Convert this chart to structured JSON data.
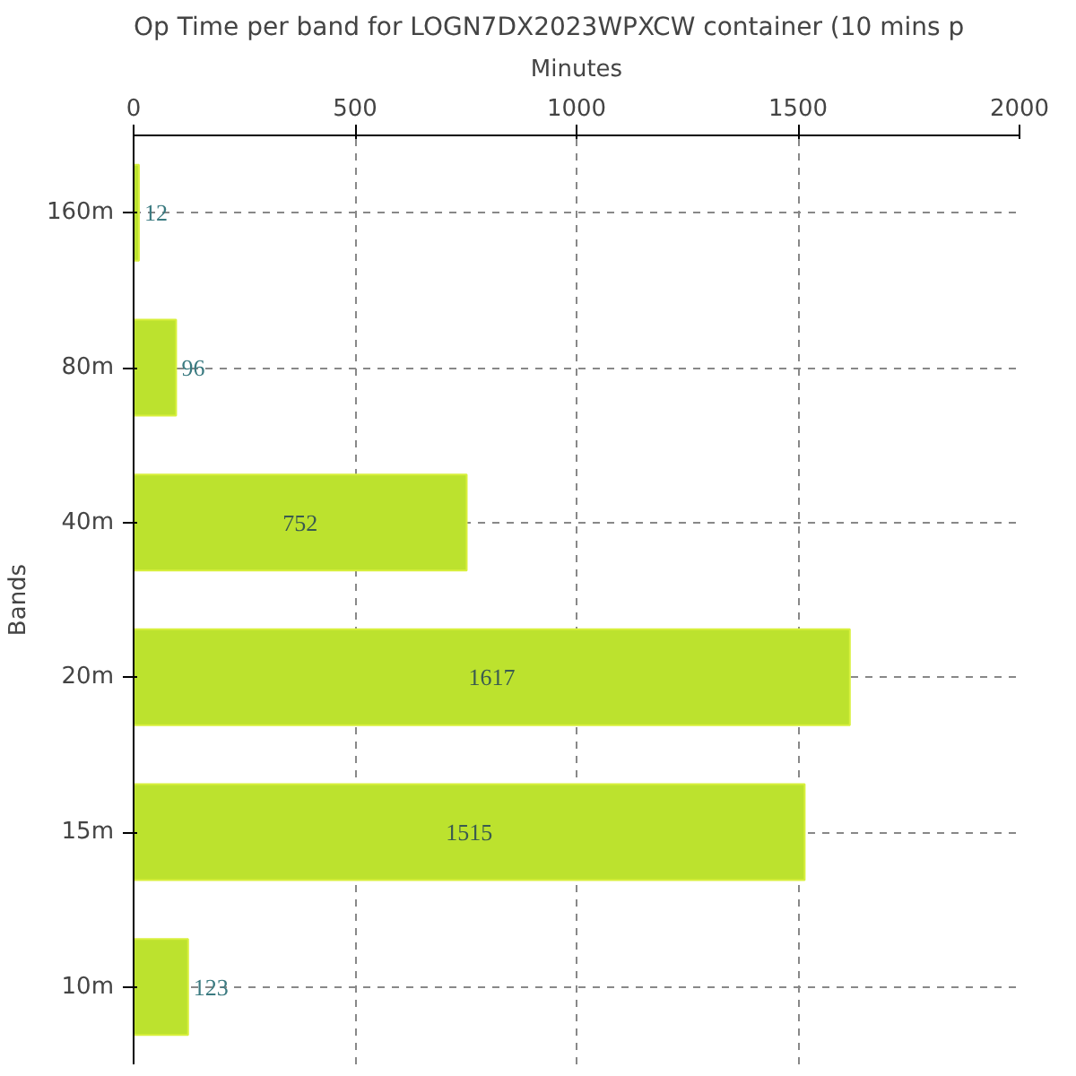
{
  "chart_data": {
    "type": "bar",
    "orientation": "horizontal",
    "title": "Op Time per band for LOGN7DX2023WPXCW container (10 mins p",
    "xlabel": "Minutes",
    "ylabel": "Bands",
    "categories": [
      "160m",
      "80m",
      "40m",
      "20m",
      "15m",
      "10m"
    ],
    "values": [
      12,
      96,
      752,
      1617,
      1515,
      123
    ],
    "color": "#bce22e",
    "xlim": [
      0,
      2000
    ],
    "xticks": [
      0,
      500,
      1000,
      1500,
      2000
    ],
    "grid": true,
    "data_labels": true
  }
}
